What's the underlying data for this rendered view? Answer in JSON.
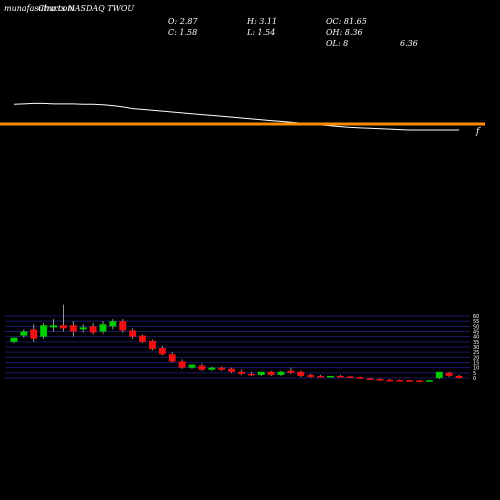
{
  "header": {
    "brand": "munafasutra.com",
    "title": "Charts NASDAQ TWOU",
    "ohlc": {
      "open_label": "O: 2.87",
      "high_label": "H: 3.11",
      "oc_label": "OC: 81.65",
      "close_label": "C: 1.58",
      "low_label": "L: 1.54",
      "oh_label": "OH: 8.36",
      "ol_label": "OL: 8",
      "ol_value": "6.36"
    }
  },
  "colors": {
    "up": "#00cc00",
    "down": "#ee1111",
    "ema_fast": "#ffffff",
    "ema_slow": "#ff8c00",
    "grid": "#1a1a66",
    "background": "#000000"
  },
  "chart_data": {
    "type": "candlestick",
    "y_axis_ticks": [
      "60",
      "55",
      "50",
      "45",
      "40",
      "35",
      "30",
      "25",
      "20",
      "15",
      "10",
      "5",
      "0"
    ],
    "ylim": [
      0,
      60
    ],
    "candles": [
      {
        "o": 35,
        "h": 39,
        "c": 39,
        "l": 34,
        "dir": "up"
      },
      {
        "o": 41,
        "h": 47,
        "c": 45,
        "l": 39,
        "dir": "up"
      },
      {
        "o": 47,
        "h": 52,
        "c": 38,
        "l": 35,
        "dir": "down"
      },
      {
        "o": 40,
        "h": 53,
        "c": 51,
        "l": 38,
        "dir": "up"
      },
      {
        "o": 49,
        "h": 57,
        "c": 51,
        "l": 45,
        "dir": "up"
      },
      {
        "o": 51,
        "h": 71,
        "c": 48,
        "l": 45,
        "dir": "down"
      },
      {
        "o": 51,
        "h": 55,
        "c": 45,
        "l": 40,
        "dir": "down"
      },
      {
        "o": 47,
        "h": 52,
        "c": 49,
        "l": 44,
        "dir": "up"
      },
      {
        "o": 50,
        "h": 53,
        "c": 44,
        "l": 42,
        "dir": "down"
      },
      {
        "o": 45,
        "h": 55,
        "c": 52,
        "l": 43,
        "dir": "up"
      },
      {
        "o": 50,
        "h": 57,
        "c": 55,
        "l": 47,
        "dir": "up"
      },
      {
        "o": 55,
        "h": 57,
        "c": 46,
        "l": 44,
        "dir": "down"
      },
      {
        "o": 46,
        "h": 48,
        "c": 40,
        "l": 38,
        "dir": "down"
      },
      {
        "o": 41,
        "h": 42,
        "c": 35,
        "l": 34,
        "dir": "down"
      },
      {
        "o": 36,
        "h": 37,
        "c": 28,
        "l": 27,
        "dir": "down"
      },
      {
        "o": 29,
        "h": 31,
        "c": 23,
        "l": 22,
        "dir": "down"
      },
      {
        "o": 23,
        "h": 25,
        "c": 16,
        "l": 15,
        "dir": "down"
      },
      {
        "o": 16,
        "h": 18,
        "c": 10,
        "l": 9,
        "dir": "down"
      },
      {
        "o": 10,
        "h": 13,
        "c": 13,
        "l": 9,
        "dir": "up"
      },
      {
        "o": 12,
        "h": 14,
        "c": 8,
        "l": 7,
        "dir": "down"
      },
      {
        "o": 8,
        "h": 11,
        "c": 10,
        "l": 7,
        "dir": "up"
      },
      {
        "o": 10,
        "h": 11,
        "c": 8,
        "l": 7,
        "dir": "down"
      },
      {
        "o": 9,
        "h": 10,
        "c": 6,
        "l": 5,
        "dir": "down"
      },
      {
        "o": 6,
        "h": 8,
        "c": 4,
        "l": 3,
        "dir": "down"
      },
      {
        "o": 4,
        "h": 6,
        "c": 3,
        "l": 2,
        "dir": "down"
      },
      {
        "o": 3,
        "h": 6,
        "c": 6,
        "l": 2,
        "dir": "up"
      },
      {
        "o": 6,
        "h": 7,
        "c": 3,
        "l": 2,
        "dir": "down"
      },
      {
        "o": 3,
        "h": 7,
        "c": 6,
        "l": 2,
        "dir": "up"
      },
      {
        "o": 7,
        "h": 10,
        "c": 5,
        "l": 4,
        "dir": "down"
      },
      {
        "o": 6,
        "h": 7,
        "c": 2,
        "l": 1,
        "dir": "down"
      },
      {
        "o": 3,
        "h": 4,
        "c": 1,
        "l": 0.5,
        "dir": "down"
      },
      {
        "o": 2,
        "h": 3,
        "c": 0.8,
        "l": 0.5,
        "dir": "down"
      },
      {
        "o": 1,
        "h": 2,
        "c": 2,
        "l": 0.5,
        "dir": "up"
      },
      {
        "o": 2,
        "h": 3,
        "c": 1,
        "l": 0.5,
        "dir": "down"
      },
      {
        "o": 1.5,
        "h": 2,
        "c": 0.5,
        "l": 0.3,
        "dir": "down"
      },
      {
        "o": 0.8,
        "h": 1.2,
        "c": -0.5,
        "l": -0.7,
        "dir": "down"
      },
      {
        "o": -0.5,
        "h": 0.3,
        "c": -1,
        "l": -1.2,
        "dir": "down"
      },
      {
        "o": -1,
        "h": -0.5,
        "c": -2,
        "l": -2.2,
        "dir": "down"
      },
      {
        "o": -1.8,
        "h": -1,
        "c": -2.2,
        "l": -2.5,
        "dir": "down"
      },
      {
        "o": -2,
        "h": -1.5,
        "c": -2.5,
        "l": -2.8,
        "dir": "down"
      },
      {
        "o": -2.2,
        "h": -1.8,
        "c": -2.6,
        "l": -2.8,
        "dir": "down"
      },
      {
        "o": -2.5,
        "h": -2,
        "c": -2.7,
        "l": -2.9,
        "dir": "down"
      },
      {
        "o": -2.6,
        "h": -1.8,
        "c": -2.2,
        "l": -2.9,
        "dir": "up"
      },
      {
        "o": 0,
        "h": 6,
        "c": 6,
        "l": -1,
        "dir": "up"
      },
      {
        "o": 5,
        "h": 6,
        "c": 2,
        "l": 1,
        "dir": "down"
      },
      {
        "o": 2,
        "h": 3,
        "c": 0,
        "l": -0.5,
        "dir": "down"
      }
    ],
    "ema_fast": [
      60,
      61,
      62,
      62,
      61,
      61,
      61,
      60,
      60,
      59,
      57,
      54,
      50,
      48,
      46,
      44,
      42,
      40,
      38,
      36,
      34,
      32,
      30,
      28,
      26,
      24,
      22,
      20,
      18,
      16,
      14,
      12,
      10,
      8,
      6,
      5,
      4,
      3,
      2,
      1,
      0,
      0,
      0,
      0,
      0,
      0
    ],
    "ema_slow": [
      48,
      48,
      48,
      48,
      48,
      48,
      48,
      48,
      48,
      48,
      48,
      47,
      46,
      45,
      44,
      43,
      42,
      41,
      40,
      39,
      38,
      37,
      36,
      35,
      34,
      33,
      32,
      31,
      30,
      29,
      28,
      27,
      26,
      25,
      24,
      23,
      22,
      21,
      20,
      19,
      18,
      17,
      16,
      15,
      14,
      13
    ]
  }
}
